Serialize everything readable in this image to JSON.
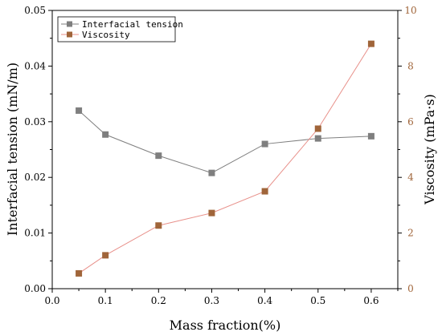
{
  "chart_data": {
    "type": "line",
    "title": "",
    "x": [
      0.05,
      0.1,
      0.2,
      0.3,
      0.4,
      0.5,
      0.6
    ],
    "xlabel": "Mass fraction(%)",
    "xlim": [
      0.0,
      0.65
    ],
    "xticks": [
      "0.0",
      "0.1",
      "0.2",
      "0.3",
      "0.4",
      "0.5",
      "0.6"
    ],
    "ylabel_left": "Interfacial tension (mN/m)",
    "ylim_left": [
      0.0,
      0.05
    ],
    "yticks_left": [
      "0.00",
      "0.01",
      "0.02",
      "0.03",
      "0.04",
      "0.05"
    ],
    "ylabel_right": "Viscosity (mPa·s)",
    "ylim_right": [
      0,
      10
    ],
    "yticks_right": [
      "0",
      "2",
      "4",
      "6",
      "8",
      "10"
    ],
    "grid": false,
    "legend_position": "top-left",
    "series": [
      {
        "name": "Interfacial tension",
        "axis": "left",
        "color": "#7f7f7f",
        "marker": "square",
        "values": [
          0.032,
          0.0277,
          0.0239,
          0.0208,
          0.026,
          0.027,
          0.0274
        ]
      },
      {
        "name": "Viscosity",
        "axis": "right",
        "color": "#a0653a",
        "line_color": "#e8908a",
        "marker": "square",
        "values": [
          0.55,
          1.2,
          2.27,
          2.72,
          3.5,
          5.75,
          8.8
        ]
      }
    ]
  }
}
